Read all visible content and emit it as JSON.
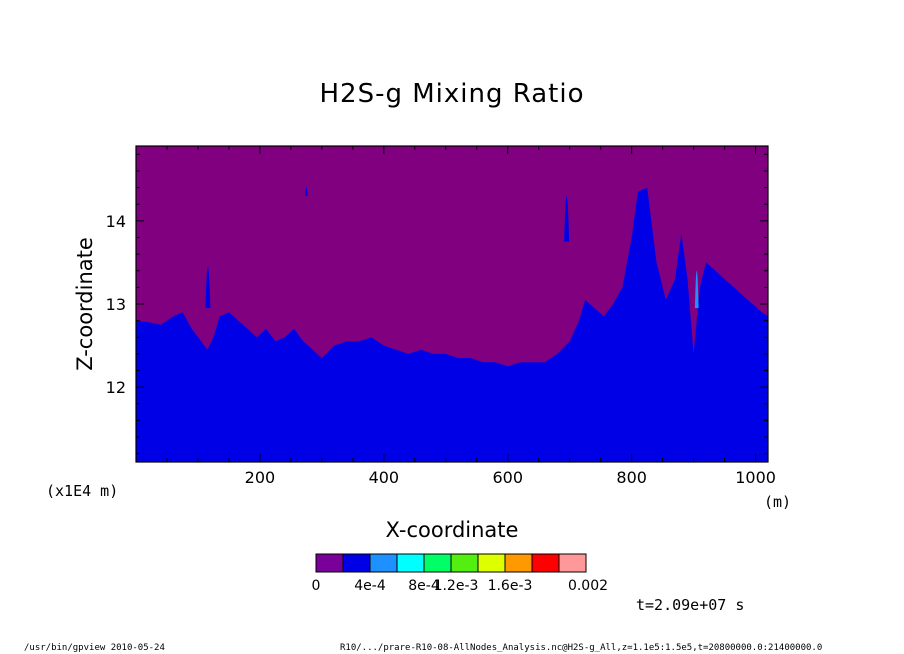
{
  "chart_data": {
    "type": "heatmap",
    "title": "H2S-g Mixing Ratio",
    "xlabel": "X-coordinate",
    "ylabel": "Z-coordinate",
    "x_unit": "(m)",
    "x_multiplier": "(x1E4 m)",
    "xlim": [
      0,
      1020
    ],
    "ylim": [
      11.1,
      14.9
    ],
    "x_ticks": [
      "200",
      "400",
      "600",
      "800",
      "1000"
    ],
    "y_ticks": [
      "12",
      "13",
      "14"
    ],
    "fill_colors": [
      "#800080",
      "#0000e6",
      "#0a82ff",
      "#00ffff",
      "#22ff55",
      "#33dd00",
      "#eeff00",
      "#ff9900",
      "#ff0000",
      "#ff9999"
    ],
    "colorbar": {
      "colors": [
        "#7a009a",
        "#0000e6",
        "#1e90ff",
        "#00ffff",
        "#00ff66",
        "#55ee11",
        "#ddff00",
        "#ff9900",
        "#ff0000",
        "#ff9999"
      ],
      "labels": [
        "0",
        "4e-4",
        "8e-4",
        "1.2e-3",
        "1.6e-3",
        "0.002"
      ]
    },
    "interface": {
      "description_units": "x in m, z in E4 m",
      "x": [
        0,
        20,
        40,
        60,
        75,
        90,
        105,
        115,
        125,
        135,
        150,
        165,
        180,
        195,
        210,
        225,
        240,
        255,
        270,
        285,
        300,
        320,
        340,
        360,
        380,
        400,
        420,
        440,
        460,
        480,
        500,
        520,
        540,
        560,
        580,
        600,
        620,
        640,
        660,
        680,
        700,
        715,
        725,
        740,
        755,
        770,
        785,
        800,
        810,
        825,
        840,
        855,
        870,
        880,
        890,
        900,
        910,
        920,
        935,
        950,
        965,
        980,
        995,
        1010,
        1020
      ],
      "z": [
        12.8,
        12.78,
        12.75,
        12.85,
        12.9,
        12.7,
        12.55,
        12.45,
        12.6,
        12.85,
        12.9,
        12.8,
        12.7,
        12.6,
        12.7,
        12.55,
        12.6,
        12.7,
        12.55,
        12.45,
        12.35,
        12.5,
        12.55,
        12.55,
        12.6,
        12.5,
        12.45,
        12.4,
        12.45,
        12.4,
        12.4,
        12.35,
        12.35,
        12.3,
        12.3,
        12.25,
        12.3,
        12.3,
        12.3,
        12.4,
        12.55,
        12.8,
        13.05,
        12.95,
        12.85,
        13.0,
        13.2,
        13.8,
        14.35,
        14.4,
        13.5,
        13.05,
        13.3,
        13.85,
        13.3,
        12.4,
        13.2,
        13.5,
        13.4,
        13.3,
        13.2,
        13.1,
        13.0,
        12.9,
        12.85
      ]
    },
    "time_label": "t=2.09e+07 s"
  },
  "footer": {
    "left": "/usr/bin/gpview  2010-05-24",
    "right": "R10/.../prare-R10-08-AllNodes_Analysis.nc@H2S-g_All,z=1.1e5:1.5e5,t=20800000.0:21400000.0"
  }
}
